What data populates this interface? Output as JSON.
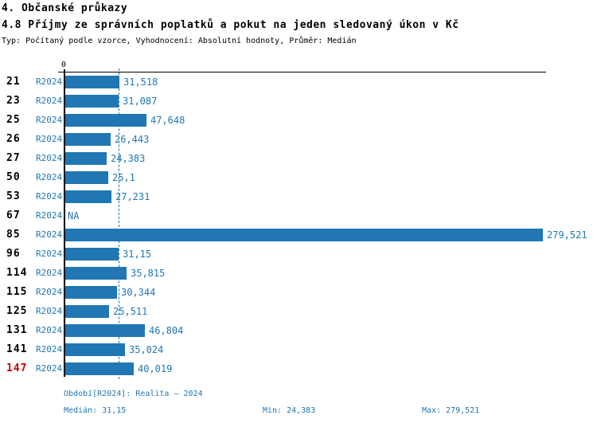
{
  "header": {
    "title": "4. Občanské průkazy",
    "subtitle": "4.8 Příjmy ze správních poplatků a pokut na jeden sledovaný úkon v Kč",
    "meta": "Typ: Počítaný podle vzorce, Vyhodnocení: Absolutní hodnoty, Průměr: Medián"
  },
  "chart_data": {
    "type": "bar",
    "orientation": "horizontal",
    "title": "4.8 Příjmy ze správních poplatků a pokut na jeden sledovaný úkon v Kč",
    "axis_zero_label": "0",
    "series_name": "R2024",
    "xlim": [
      0,
      279.521
    ],
    "median_value": 31.15,
    "grid": false,
    "median_line": "dashed",
    "categories": [
      "21",
      "23",
      "25",
      "26",
      "27",
      "50",
      "53",
      "67",
      "85",
      "96",
      "114",
      "115",
      "125",
      "131",
      "141",
      "147"
    ],
    "rows": [
      {
        "category": "21",
        "period": "R2024",
        "value": 31.518,
        "display": "31,518",
        "highlight": false
      },
      {
        "category": "23",
        "period": "R2024",
        "value": 31.087,
        "display": "31,087",
        "highlight": false
      },
      {
        "category": "25",
        "period": "R2024",
        "value": 47.648,
        "display": "47,648",
        "highlight": false
      },
      {
        "category": "26",
        "period": "R2024",
        "value": 26.443,
        "display": "26,443",
        "highlight": false
      },
      {
        "category": "27",
        "period": "R2024",
        "value": 24.383,
        "display": "24,383",
        "highlight": false
      },
      {
        "category": "50",
        "period": "R2024",
        "value": 25.1,
        "display": "25,1",
        "highlight": false
      },
      {
        "category": "53",
        "period": "R2024",
        "value": 27.231,
        "display": "27,231",
        "highlight": false
      },
      {
        "category": "67",
        "period": "R2024",
        "value": null,
        "display": "NA",
        "highlight": false
      },
      {
        "category": "85",
        "period": "R2024",
        "value": 279.521,
        "display": "279,521",
        "highlight": false
      },
      {
        "category": "96",
        "period": "R2024",
        "value": 31.15,
        "display": "31,15",
        "highlight": false
      },
      {
        "category": "114",
        "period": "R2024",
        "value": 35.815,
        "display": "35,815",
        "highlight": false
      },
      {
        "category": "115",
        "period": "R2024",
        "value": 30.344,
        "display": "30,344",
        "highlight": false
      },
      {
        "category": "125",
        "period": "R2024",
        "value": 25.511,
        "display": "25,511",
        "highlight": false
      },
      {
        "category": "131",
        "period": "R2024",
        "value": 46.804,
        "display": "46,804",
        "highlight": false
      },
      {
        "category": "141",
        "period": "R2024",
        "value": 35.024,
        "display": "35,024",
        "highlight": false
      },
      {
        "category": "147",
        "period": "R2024",
        "value": 40.019,
        "display": "40,019",
        "highlight": true
      }
    ]
  },
  "footer": {
    "period_info": "Období[R2024]: Realita – 2024",
    "median": "Medián: 31,15",
    "min": "Min: 24,383",
    "max": "Max: 279,521"
  },
  "colors": {
    "bar": "#2077b4",
    "accent_text": "#2077b4",
    "highlight_label": "#cc0000",
    "axis": "#000000"
  }
}
